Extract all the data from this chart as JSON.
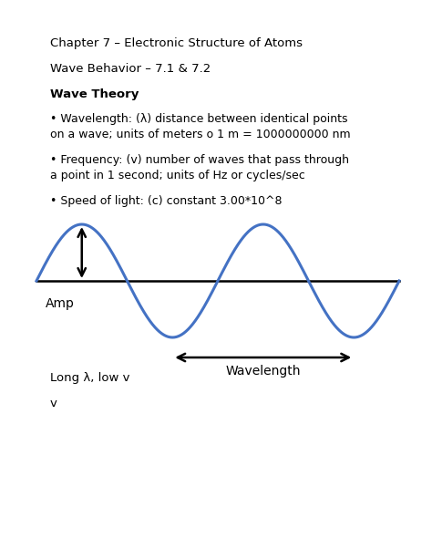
{
  "title_line1": "Chapter 7 – Electronic Structure of Atoms",
  "title_line2": "Wave Behavior – 7.1 & 7.2",
  "wave_theory_title": "Wave Theory",
  "bullet1": "• Wavelength: (λ) distance between identical points\non a wave; units of meters o 1 m = 1000000000 nm",
  "bullet2": "• Frequency: (v) number of waves that pass through\na point in 1 second; units of Hz or cycles/sec",
  "bullet3": "• Speed of light: (c) constant 3.00*10^8",
  "amp_label": "Amp",
  "wavelength_label": "Wavelength",
  "bottom_text1": "Long λ, low v",
  "bottom_text2": "v",
  "wave_color": "#4472C4",
  "bg_color": "#ffffff",
  "text_color": "#000000",
  "fig_width": 4.74,
  "fig_height": 6.13,
  "dpi": 100
}
